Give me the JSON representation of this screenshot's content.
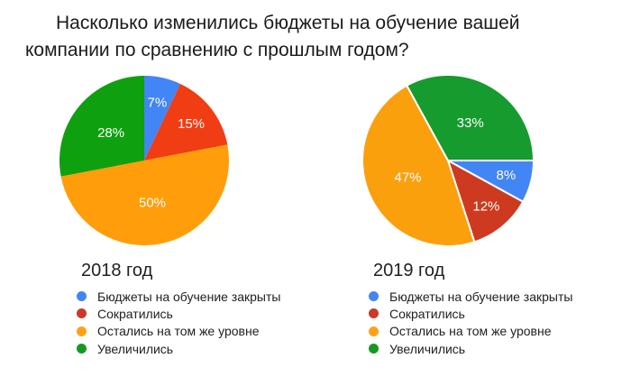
{
  "title": "Насколько изменились бюджеты на обучение вашей компании по сравнению с прошлым годом?",
  "legend": {
    "labels": [
      "Бюджеты на обучение закрыты",
      "Сократились",
      "Остались на том же уровне",
      "Увеличились"
    ],
    "colors": [
      "#4285F4",
      "#CA3A26",
      "#FFA117",
      "#169920"
    ]
  },
  "chart_data": [
    {
      "type": "pie",
      "title": "2018 год",
      "labels": [
        "Бюджеты на обучение закрыты",
        "Сократились",
        "Остались на том же уровне",
        "Увеличились"
      ],
      "values": [
        7,
        15,
        50,
        28
      ],
      "unit": "%",
      "colors": [
        "#4285F4",
        "#F03D13",
        "#FF9D0A",
        "#0FA00F"
      ],
      "rotation_deg": 0,
      "slice_border": "",
      "slice_label_color": "#ffffff",
      "legend_position": "bottom"
    },
    {
      "type": "pie",
      "title": "2019 год",
      "labels": [
        "Бюджеты на обучение закрыты",
        "Сократились",
        "Остались на том же уровне",
        "Увеличились"
      ],
      "values": [
        8,
        12,
        47,
        33
      ],
      "unit": "%",
      "colors": [
        "#4285F4",
        "#CE3A1F",
        "#FBA00D",
        "#169B2E"
      ],
      "rotation_deg": 90,
      "slice_border": "#ffffff",
      "slice_label_color": "#ffffff",
      "legend_position": "bottom"
    }
  ]
}
